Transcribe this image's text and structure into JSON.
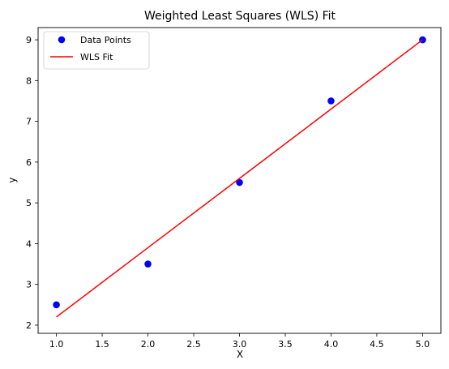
{
  "chart_data": {
    "type": "scatter",
    "title": "Weighted Least Squares (WLS) Fit",
    "xlabel": "X",
    "ylabel": "y",
    "xlim": [
      0.8,
      5.2
    ],
    "ylim": [
      1.8,
      9.3
    ],
    "x_ticks": [
      1.0,
      1.5,
      2.0,
      2.5,
      3.0,
      3.5,
      4.0,
      4.5,
      5.0
    ],
    "x_tick_labels": [
      "1.0",
      "1.5",
      "2.0",
      "2.5",
      "3.0",
      "3.5",
      "4.0",
      "4.5",
      "5.0"
    ],
    "y_ticks": [
      2,
      3,
      4,
      5,
      6,
      7,
      8,
      9
    ],
    "y_tick_labels": [
      "2",
      "3",
      "4",
      "5",
      "6",
      "7",
      "8",
      "9"
    ],
    "grid": false,
    "legend_position": "top-left",
    "series": [
      {
        "name": "Data Points",
        "kind": "scatter",
        "color": "#0000ff",
        "x": [
          1,
          2,
          3,
          4,
          5
        ],
        "y": [
          2.5,
          3.5,
          5.5,
          7.5,
          9.0
        ]
      },
      {
        "name": "WLS Fit",
        "kind": "line",
        "color": "#ff0000",
        "x": [
          1,
          2,
          3,
          4,
          5
        ],
        "y": [
          2.2,
          3.9,
          5.6,
          7.3,
          9.0
        ]
      }
    ]
  }
}
